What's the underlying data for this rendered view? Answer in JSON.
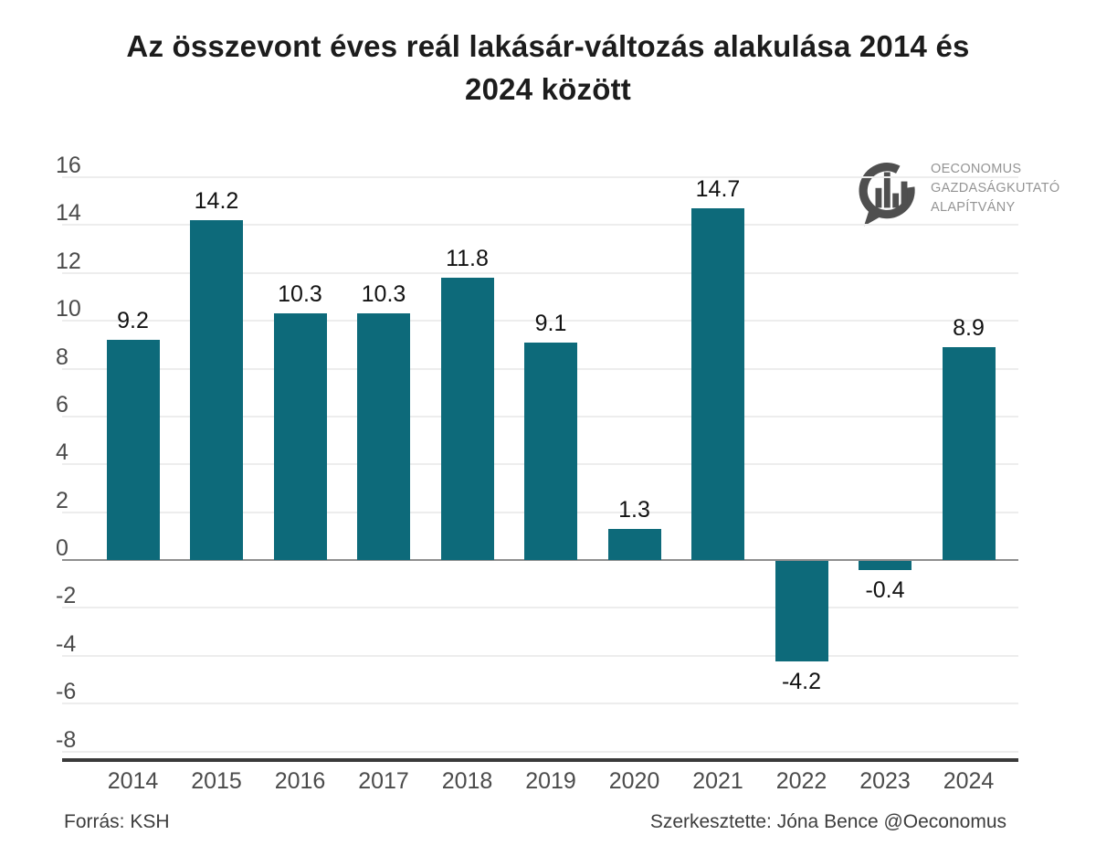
{
  "title": "Az összevont éves reál lakásár-változás alakulása 2014 és\n2024 között",
  "logo": {
    "name": "oeconomus-logo",
    "lines": [
      "OECONOMUS",
      "GAZDASÁGKUTATÓ",
      "ALAPÍTVÁNY"
    ]
  },
  "footer": {
    "source": "Forrás: KSH",
    "editor": "Szerkesztette: Jóna Bence @Oeconomus"
  },
  "colors": {
    "bar": "#0d6a7a",
    "grid": "#ededed",
    "zero_line": "#8f8f8f",
    "axis_line": "#3a3a3a",
    "logo": "#4f4f4f",
    "title_text": "#1c1c1c",
    "tick_text": "#4b4b4b"
  },
  "chart_data": {
    "type": "bar",
    "title": "Az összevont éves reál lakásár-változás alakulása 2014 és 2024 között",
    "categories": [
      "2014",
      "2015",
      "2016",
      "2017",
      "2018",
      "2019",
      "2020",
      "2021",
      "2022",
      "2023",
      "2024"
    ],
    "values": [
      9.2,
      14.2,
      10.3,
      10.3,
      11.8,
      9.1,
      1.3,
      14.7,
      -4.2,
      -0.4,
      8.9
    ],
    "data_labels": [
      "9.2",
      "14.2",
      "10.3",
      "10.3",
      "11.8",
      "9.1",
      "1.3",
      "14.7",
      "-4.2",
      "-0.4",
      "8.9"
    ],
    "xlabel": "",
    "ylabel": "",
    "ylim": [
      -8,
      16
    ],
    "yticks": [
      16,
      14,
      12,
      10,
      8,
      6,
      4,
      2,
      0,
      -2,
      -4,
      -6,
      -8
    ],
    "grid": true,
    "legend": false,
    "source": "KSH"
  }
}
